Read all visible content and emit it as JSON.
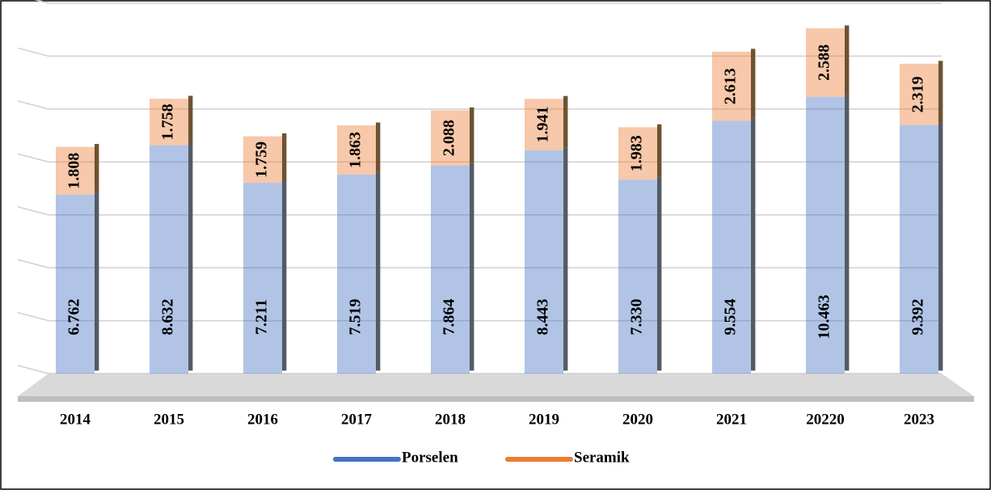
{
  "chart_data": {
    "type": "bar",
    "stacked": true,
    "categories": [
      "2014",
      "2015",
      "2016",
      "2017",
      "2018",
      "2019",
      "2020",
      "2021",
      "20220",
      "2023"
    ],
    "series": [
      {
        "name": "Porselen",
        "color": "#4472c4",
        "values": [
          6.762,
          8.632,
          7.211,
          7.519,
          7.864,
          8.443,
          7.33,
          9.554,
          10.463,
          9.392
        ],
        "value_labels": [
          "6.762",
          "8.632",
          "7.211",
          "7.519",
          "7.864",
          "8.443",
          "7.330",
          "9.554",
          "10.463",
          "9.392"
        ]
      },
      {
        "name": "Seramik",
        "color": "#ed7d31",
        "values": [
          1.808,
          1.758,
          1.759,
          1.863,
          2.088,
          1.941,
          1.983,
          2.613,
          2.588,
          2.319
        ],
        "value_labels": [
          "1.808",
          "1.758",
          "1.759",
          "1.863",
          "2.088",
          "1.941",
          "1.983",
          "2.613",
          "2.588",
          "2.319"
        ]
      }
    ],
    "ylim": [
      0,
      14
    ],
    "yticks": [
      0,
      2,
      4,
      6,
      8,
      10,
      12,
      14
    ],
    "grid": true,
    "legend": "bottom"
  }
}
